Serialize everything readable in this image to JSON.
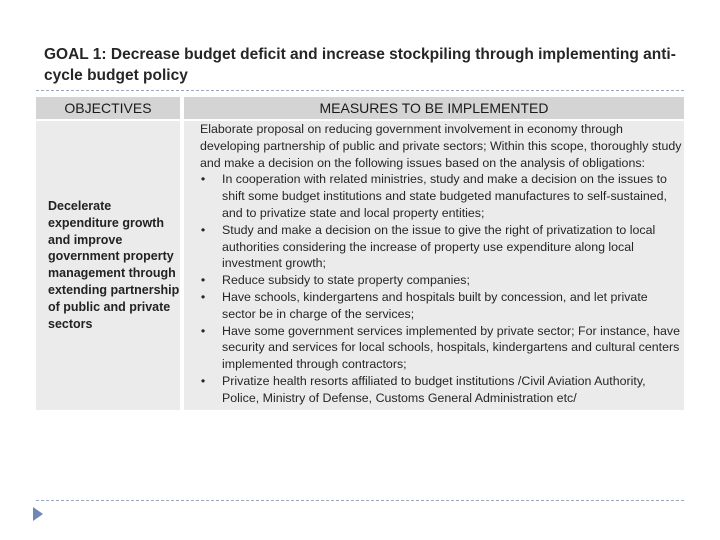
{
  "title": "GOAL 1: Decrease budget deficit and increase stockpiling through implementing anti-cycle budget policy",
  "table": {
    "headers": [
      "OBJECTIVES",
      "MEASURES TO BE IMPLEMENTED"
    ],
    "objective": "Decelerate expenditure growth and improve government property management through extending partnership of public and private sectors",
    "measures_intro": "Elaborate proposal on reducing government involvement in economy through developing partnership of public and private sectors; Within this scope, thoroughly study and make a decision on the following issues based on the analysis of obligations:",
    "bullet_symbol": "•",
    "measures": [
      "In cooperation with related ministries, study and make a decision on the issues to shift some budget institutions and state budgeted manufactures to self-sustained, and to privatize state and local property entities;",
      "Study and make a decision on the issue to give the right of privatization to local authorities considering the increase of property use expenditure along local investment growth;",
      "Reduce subsidy to state property companies;",
      "Have schools, kindergartens and hospitals built by concession, and let private sector be in charge of the services;",
      "Have some government services implemented by private sector; For instance, have security and services for local schools, hospitals, kindergartens and cultural centers implemented through contractors;",
      "Privatize health resorts affiliated to budget institutions /Civil Aviation Authority, Police, Ministry of Defense, Customs General Administration etc/"
    ]
  },
  "colors": {
    "header_bg": "#d4d4d4",
    "cell_bg": "#ebebeb",
    "rule": "#9aa8bb",
    "accent_arrow": "#6f87b6"
  }
}
